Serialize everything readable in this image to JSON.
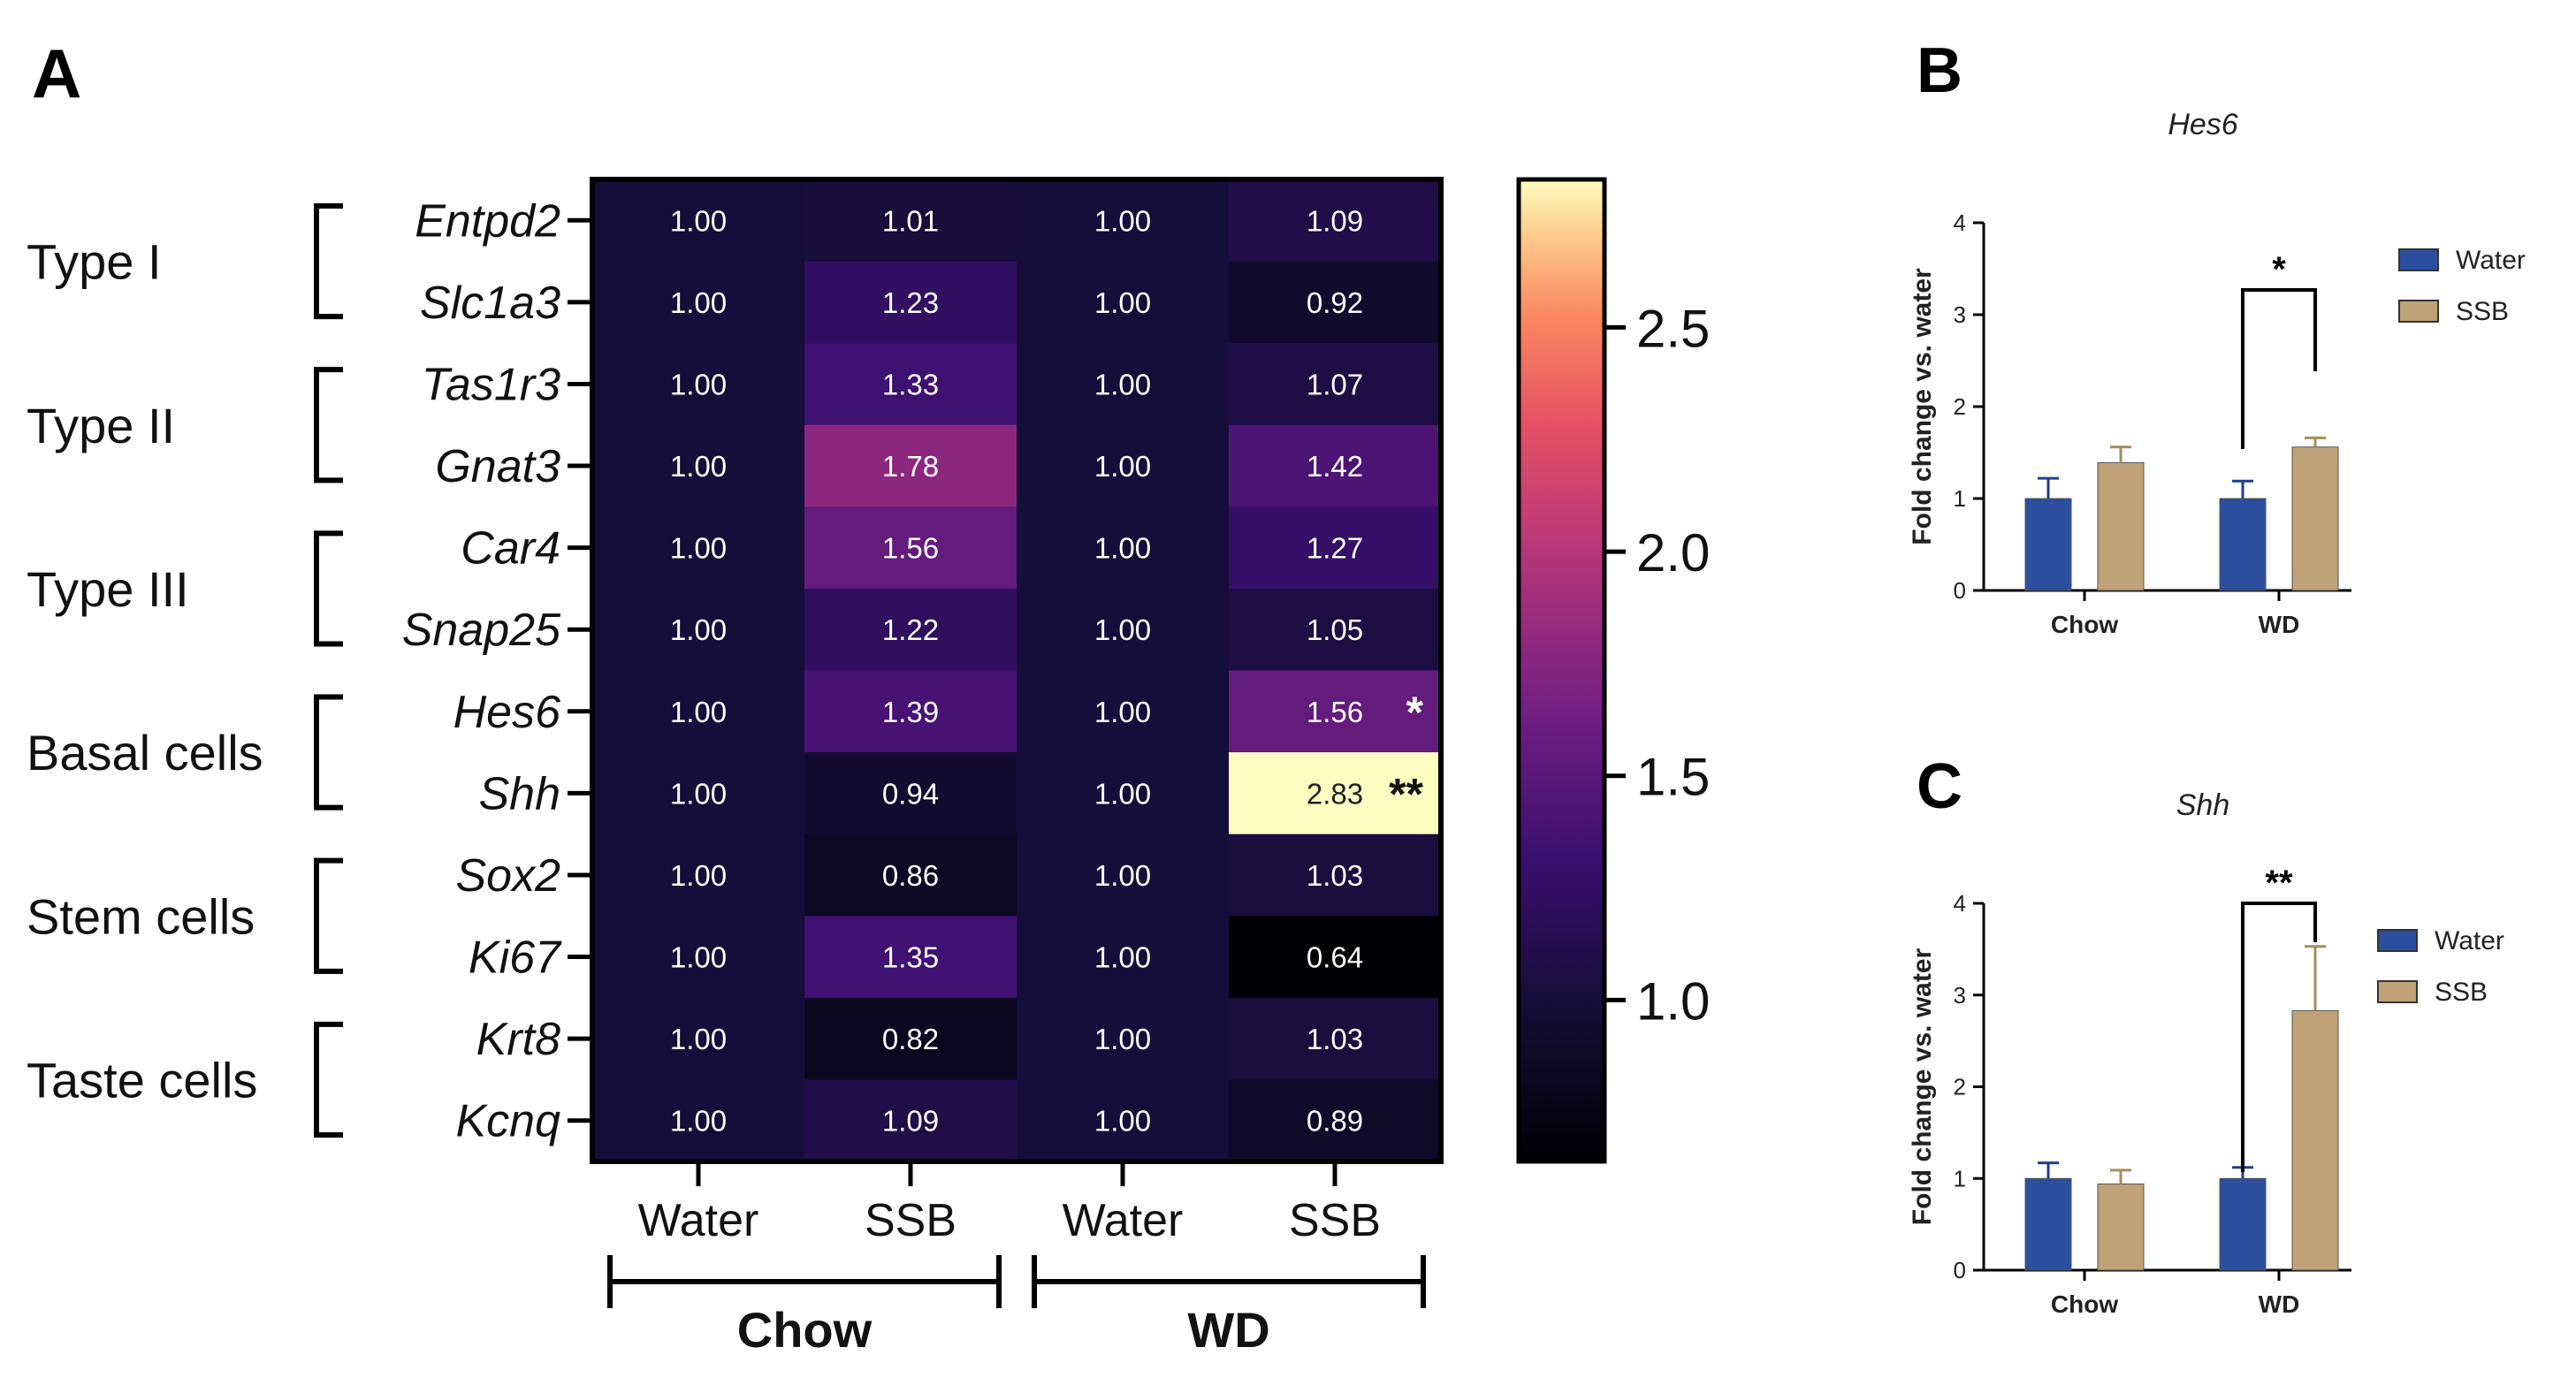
{
  "panels": {
    "A": {
      "label": "A"
    },
    "B": {
      "label": "B"
    },
    "C": {
      "label": "C"
    }
  },
  "colors": {
    "water_bar": "#2B4E9E",
    "ssb_bar": "#BFA277",
    "axis": "#000000"
  },
  "chart_data": [
    {
      "type": "heatmap",
      "panel": "A",
      "rows": [
        "Entpd2",
        "Slc1a3",
        "Tas1r3",
        "Gnat3",
        "Car4",
        "Snap25",
        "Hes6",
        "Shh",
        "Sox2",
        "Ki67",
        "Krt8",
        "Kcnq"
      ],
      "columns": [
        "Water",
        "SSB",
        "Water",
        "SSB"
      ],
      "column_groups": [
        {
          "name": "Chow",
          "columns": [
            0,
            1
          ]
        },
        {
          "name": "WD",
          "columns": [
            2,
            3
          ]
        }
      ],
      "row_groups": [
        {
          "name": "Type I",
          "rows": [
            0,
            1
          ]
        },
        {
          "name": "Type II",
          "rows": [
            2,
            3
          ]
        },
        {
          "name": "Type III",
          "rows": [
            4,
            5
          ]
        },
        {
          "name": "Basal cells",
          "rows": [
            6,
            7
          ]
        },
        {
          "name": "Stem cells",
          "rows": [
            8,
            9
          ]
        },
        {
          "name": "Taste cells",
          "rows": [
            10,
            11
          ]
        }
      ],
      "values": [
        [
          "1.00",
          "1.01",
          "1.00",
          "1.09"
        ],
        [
          "1.00",
          "1.23",
          "1.00",
          "0.92"
        ],
        [
          "1.00",
          "1.33",
          "1.00",
          "1.07"
        ],
        [
          "1.00",
          "1.78",
          "1.00",
          "1.42"
        ],
        [
          "1.00",
          "1.56",
          "1.00",
          "1.27"
        ],
        [
          "1.00",
          "1.22",
          "1.00",
          "1.05"
        ],
        [
          "1.00",
          "1.39",
          "1.00",
          "1.56"
        ],
        [
          "1.00",
          "0.94",
          "1.00",
          "2.83"
        ],
        [
          "1.00",
          "0.86",
          "1.00",
          "1.03"
        ],
        [
          "1.00",
          "1.35",
          "1.00",
          "0.64"
        ],
        [
          "1.00",
          "0.82",
          "1.00",
          "1.03"
        ],
        [
          "1.00",
          "1.09",
          "1.00",
          "0.89"
        ]
      ],
      "significance": [
        {
          "row": 6,
          "col": 3,
          "mark": "*"
        },
        {
          "row": 7,
          "col": 3,
          "mark": "**"
        }
      ],
      "colorbar": {
        "min": 0.64,
        "max": 2.83,
        "ticks": [
          "1.0",
          "1.5",
          "2.0",
          "2.5"
        ],
        "tick_values": [
          1.0,
          1.5,
          2.0,
          2.5
        ]
      }
    },
    {
      "type": "bar",
      "panel": "B",
      "title": "Hes6",
      "ylabel": "Fold change  vs. water",
      "categories": [
        "Chow",
        "WD"
      ],
      "series": [
        {
          "name": "Water",
          "values": [
            1.0,
            1.0
          ],
          "errors": [
            0.22,
            0.19
          ]
        },
        {
          "name": "SSB",
          "values": [
            1.39,
            1.56
          ],
          "errors": [
            0.17,
            0.1
          ]
        }
      ],
      "ylim": [
        0,
        4
      ],
      "yticks": [
        "0",
        "1",
        "2",
        "3",
        "4"
      ],
      "significance": {
        "category": "WD",
        "mark": "*"
      },
      "legend": "top-right"
    },
    {
      "type": "bar",
      "panel": "C",
      "title": "Shh",
      "ylabel": "Fold change  vs. water",
      "categories": [
        "Chow",
        "WD"
      ],
      "series": [
        {
          "name": "Water",
          "values": [
            1.0,
            1.0
          ],
          "errors": [
            0.17,
            0.12
          ]
        },
        {
          "name": "SSB",
          "values": [
            0.94,
            2.83
          ],
          "errors": [
            0.15,
            0.7
          ]
        }
      ],
      "ylim": [
        0,
        4
      ],
      "yticks": [
        "0",
        "1",
        "2",
        "3",
        "4"
      ],
      "significance": {
        "category": "WD",
        "mark": "**"
      },
      "legend": "top-right"
    }
  ]
}
